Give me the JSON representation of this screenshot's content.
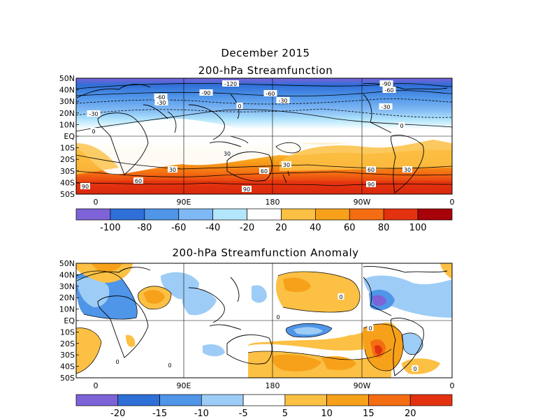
{
  "title_main": "December 2015",
  "panels": [
    {
      "title": "200-hPa Streamfunction",
      "lat_labels": [
        "50N",
        "40N",
        "30N",
        "20N",
        "10N",
        "EQ",
        "10S",
        "20S",
        "30S",
        "40S",
        "50S"
      ],
      "lon_labels": [
        "0",
        "90E",
        "180",
        "90W",
        "0"
      ],
      "colorbar": {
        "labels": [
          "-100",
          "-80",
          "-60",
          "-40",
          "-20",
          "20",
          "40",
          "60",
          "80",
          "100"
        ],
        "colors": [
          "#7d62d8",
          "#2f6fd8",
          "#4f95e8",
          "#7fb8f4",
          "#b4e6fb",
          "#ffffff",
          "#fbc044",
          "#f7a11a",
          "#f46d12",
          "#e3320f",
          "#a8020a"
        ]
      },
      "contour_labels": [
        "-120",
        "-90",
        "-90",
        "-60",
        "-60",
        "-60",
        "-30",
        "-30",
        "-30",
        "-30",
        "0",
        "0",
        "0",
        "30",
        "30",
        "30",
        "30",
        "60",
        "60",
        "60",
        "90",
        "90",
        "90"
      ]
    },
    {
      "title": "200-hPa Streamfunction Anomaly",
      "lat_labels": [
        "50N",
        "40N",
        "30N",
        "20N",
        "10N",
        "EQ",
        "10S",
        "20S",
        "30S",
        "40S",
        "50S"
      ],
      "lon_labels": [
        "0",
        "90E",
        "180",
        "90W",
        "0"
      ],
      "colorbar": {
        "labels": [
          "-20",
          "-15",
          "-10",
          "-5",
          "5",
          "10",
          "15",
          "20"
        ],
        "colors": [
          "#7d62d8",
          "#2f6fd8",
          "#4f95e8",
          "#9dcdf6",
          "#ffffff",
          "#fbc044",
          "#f7a11a",
          "#f46d12",
          "#e3320f"
        ]
      },
      "contour_labels": [
        "0",
        "0",
        "0",
        "0",
        "0",
        "0"
      ]
    }
  ]
}
